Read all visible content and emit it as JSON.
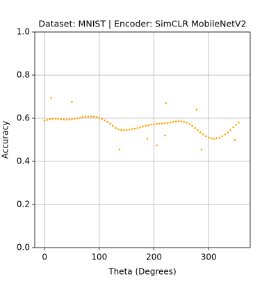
{
  "chart_data": {
    "type": "scatter",
    "title": "Dataset: MNIST | Encoder: SimCLR MobileNetV2",
    "x_label": "Theta (Degrees)",
    "y_label": "Accuracy",
    "x": [
      0,
      5,
      10,
      15,
      20,
      25,
      30,
      35,
      40,
      45,
      50,
      55,
      60,
      65,
      70,
      75,
      80,
      85,
      90,
      95,
      100,
      105,
      110,
      115,
      120,
      125,
      130,
      135,
      140,
      145,
      150,
      155,
      160,
      165,
      170,
      175,
      180,
      185,
      190,
      195,
      200,
      205,
      210,
      215,
      220,
      225,
      230,
      235,
      240,
      245,
      250,
      255,
      260,
      265,
      270,
      275,
      280,
      285,
      290,
      295,
      300,
      305,
      310,
      315,
      320,
      325,
      330,
      335,
      340,
      345,
      350,
      355,
      12,
      50,
      137,
      188,
      205,
      220,
      222,
      278,
      287,
      348
    ],
    "y": [
      0.588,
      0.592,
      0.595,
      0.597,
      0.598,
      0.596,
      0.595,
      0.594,
      0.593,
      0.594,
      0.595,
      0.597,
      0.6,
      0.603,
      0.605,
      0.607,
      0.608,
      0.608,
      0.607,
      0.605,
      0.603,
      0.597,
      0.59,
      0.583,
      0.575,
      0.565,
      0.555,
      0.549,
      0.545,
      0.544,
      0.545,
      0.547,
      0.55,
      0.552,
      0.555,
      0.558,
      0.562,
      0.565,
      0.567,
      0.57,
      0.572,
      0.574,
      0.575,
      0.576,
      0.577,
      0.578,
      0.58,
      0.583,
      0.585,
      0.586,
      0.585,
      0.583,
      0.58,
      0.573,
      0.565,
      0.555,
      0.545,
      0.535,
      0.525,
      0.517,
      0.51,
      0.507,
      0.505,
      0.507,
      0.51,
      0.517,
      0.525,
      0.535,
      0.545,
      0.558,
      0.57,
      0.58,
      0.695,
      0.675,
      0.455,
      0.505,
      0.475,
      0.52,
      0.67,
      0.64,
      0.455,
      0.5
    ],
    "color": "#ffa500",
    "xlim": [
      -18,
      376
    ],
    "ylim": [
      0,
      1
    ],
    "xticks": [
      0,
      100,
      200,
      300
    ],
    "yticks": [
      {
        "value": 0,
        "label": "0.0"
      },
      0.2,
      0.4,
      0.6,
      0.8,
      {
        "value": 1,
        "label": "1.0"
      }
    ],
    "grid": true
  }
}
